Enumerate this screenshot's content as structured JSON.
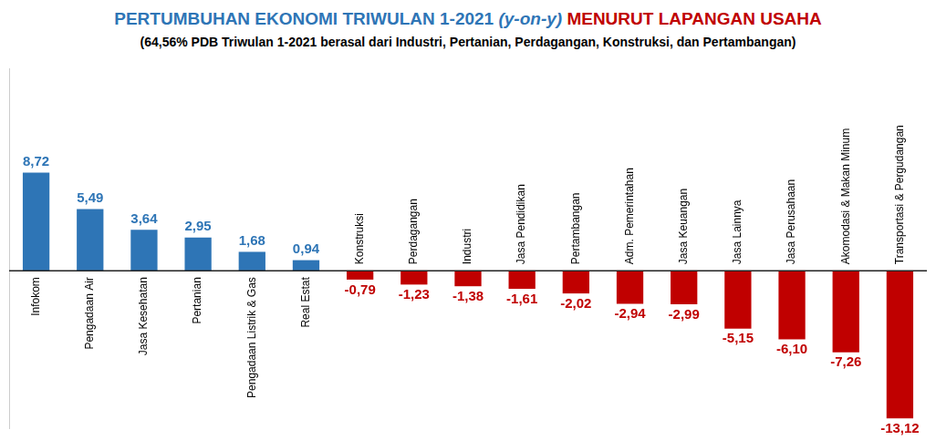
{
  "chart_data": {
    "type": "bar",
    "title": [
      "PERTUMBUHAN EKONOMI TRIWULAN 1-2021",
      "(y-on-y)",
      "MENURUT LAPANGAN USAHA"
    ],
    "subtitle": "(64,56% PDB Triwulan 1-2021 berasal dari Industri, Pertanian, Perdagangan, Konstruksi, dan Pertambangan)",
    "categories": [
      "Infokom",
      "Pengadaan Air",
      "Jasa Kesehatan",
      "Pertanian",
      "Pengadaan Listrik & Gas",
      "Real Estat",
      "Konstruksi",
      "Perdagangan",
      "Industri",
      "Jasa Pendidikan",
      "Pertambangan",
      "Adm. Pemerintahan",
      "Jasa Keuangan",
      "Jasa Lainnya",
      "Jasa Perusahaan",
      "Akomodasi & Makan Minum",
      "Transportasi & Pergudangan"
    ],
    "values": [
      8.72,
      5.49,
      3.64,
      2.95,
      1.68,
      0.94,
      -0.79,
      -1.23,
      -1.38,
      -1.61,
      -2.02,
      -2.94,
      -2.99,
      -5.15,
      -6.1,
      -7.26,
      -13.12
    ],
    "value_labels": [
      "8,72",
      "5,49",
      "3,64",
      "2,95",
      "1,68",
      "0,94",
      "-0,79",
      "-1,23",
      "-1,38",
      "-1,61",
      "-2,02",
      "-2,94",
      "-2,99",
      "-5,15",
      "-6,10",
      "-7,26",
      "-13,12"
    ],
    "colors": [
      "#2e75b6",
      "#2e75b6",
      "#2e75b6",
      "#2e75b6",
      "#2e75b6",
      "#2e75b6",
      "#c00000",
      "#c00000",
      "#c00000",
      "#c00000",
      "#c00000",
      "#c00000",
      "#c00000",
      "#c00000",
      "#c00000",
      "#c00000",
      "#c00000"
    ],
    "ylim": [
      -14,
      18
    ],
    "grid": false,
    "data_labels": true,
    "tick_labels": "x"
  }
}
